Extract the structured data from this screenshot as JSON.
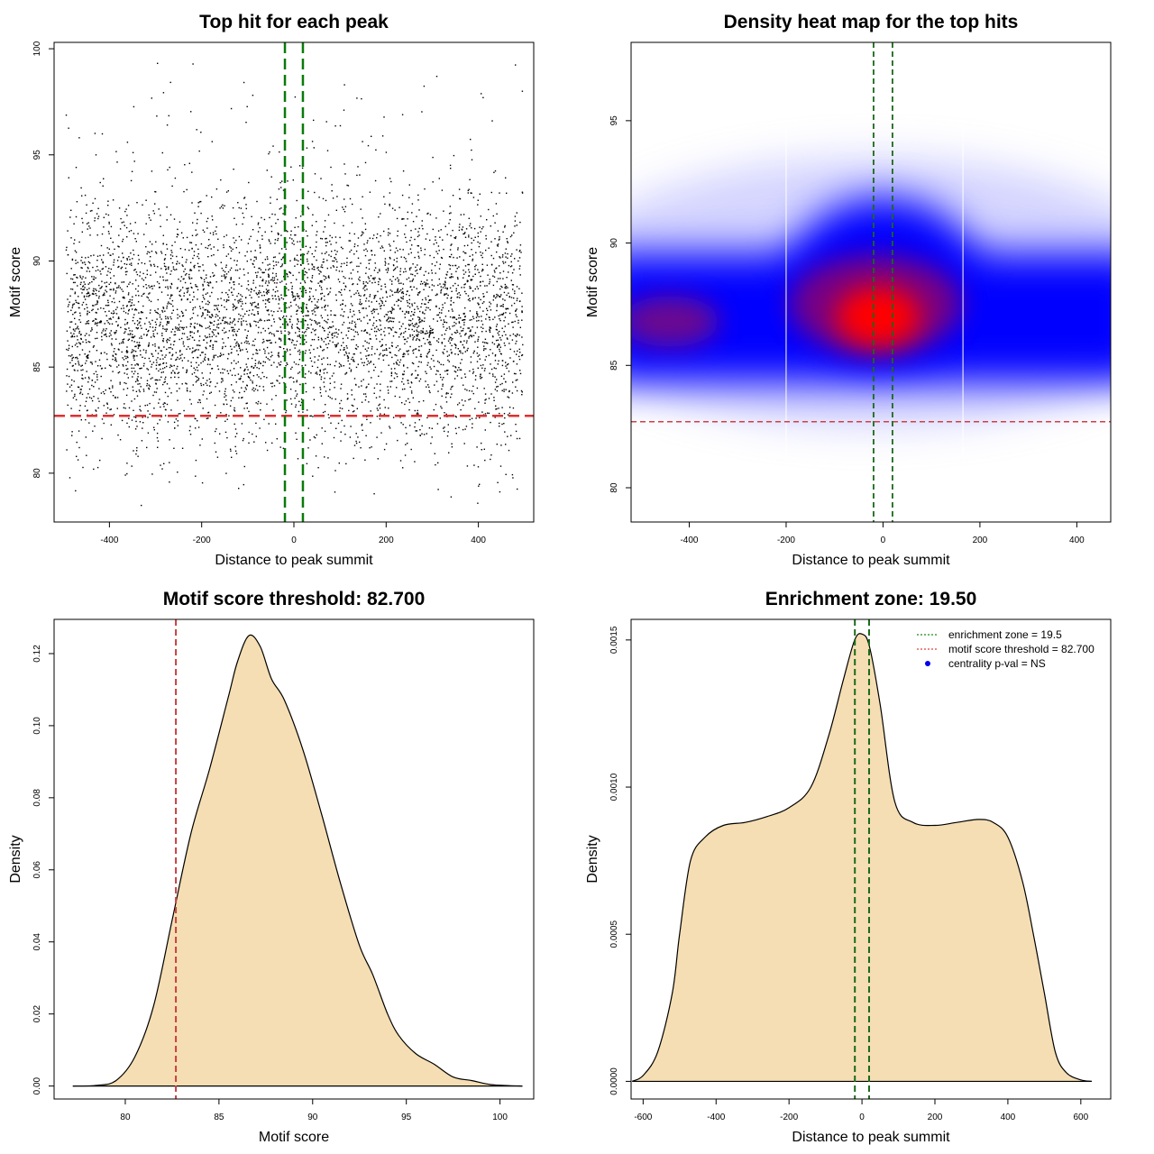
{
  "chart_data": [
    {
      "type": "scatter",
      "title": "Top hit for each peak",
      "xlabel": "Distance to peak summit",
      "ylabel": "Motif score",
      "xlim": [
        -520,
        520
      ],
      "ylim": [
        77.7,
        100.3
      ],
      "xticks": [
        -400,
        -200,
        0,
        200,
        400
      ],
      "yticks": [
        80,
        85,
        90,
        95,
        100
      ],
      "point_count": 5000,
      "point_color": "#000000",
      "threshold": 82.7,
      "zone": 19.5,
      "threshold_color": "#e03030",
      "zone_color": "#0a7a0a"
    },
    {
      "type": "heatmap",
      "title": "Density heat map for the top hits",
      "xlabel": "Distance to peak summit",
      "ylabel": "Motif score",
      "xlim": [
        -520,
        470
      ],
      "ylim": [
        78.6,
        98.2
      ],
      "xticks": [
        -400,
        -200,
        0,
        200,
        400
      ],
      "yticks": [
        80,
        85,
        90,
        95
      ],
      "threshold": 82.7,
      "zone": 19.5,
      "low_color": "#ffffff",
      "mid_color": "#0000ff",
      "high_color": "#ff0000",
      "threshold_color": "#d04040",
      "zone_color": "#1a6a1a"
    },
    {
      "type": "area",
      "title": "Motif score threshold: 82.700",
      "xlabel": "Motif score",
      "ylabel": "Density",
      "xlim": [
        76.2,
        101.8
      ],
      "ylim": [
        -0.0036,
        0.1295
      ],
      "xticks": [
        80,
        85,
        90,
        95,
        100
      ],
      "yticks": [
        0.0,
        0.02,
        0.04,
        0.06,
        0.08,
        0.1,
        0.12
      ],
      "ytick_labels": [
        "0.00",
        "0.02",
        "0.04",
        "0.06",
        "0.08",
        "0.10",
        "0.12"
      ],
      "x": [
        77.2,
        78.5,
        79.5,
        80.5,
        81.5,
        82.5,
        83.5,
        84.5,
        85.5,
        86.0,
        86.6,
        87.2,
        87.8,
        88.5,
        89.5,
        90.5,
        91.5,
        92.5,
        93.2,
        94.0,
        94.6,
        95.5,
        96.5,
        97.5,
        98.5,
        99.5,
        100.5,
        101.2
      ],
      "y": [
        0.0,
        0.0002,
        0.0015,
        0.008,
        0.022,
        0.046,
        0.07,
        0.088,
        0.108,
        0.118,
        0.125,
        0.122,
        0.113,
        0.107,
        0.093,
        0.075,
        0.056,
        0.039,
        0.031,
        0.02,
        0.014,
        0.009,
        0.006,
        0.0025,
        0.0015,
        0.0004,
        0.0001,
        0.0
      ],
      "threshold": 82.7,
      "fill_color": "#f5deb3",
      "threshold_color": "#c84040"
    },
    {
      "type": "area",
      "title": "Enrichment zone: 19.50",
      "xlabel": "Distance to peak summit",
      "ylabel": "Density",
      "xlim": [
        -633,
        682
      ],
      "ylim": [
        -6e-05,
        0.00157
      ],
      "xticks": [
        -600,
        -400,
        -200,
        0,
        200,
        400,
        600
      ],
      "yticks": [
        0.0,
        0.0005,
        0.001,
        0.0015
      ],
      "ytick_labels": [
        "0.0000",
        "0.0005",
        "0.0010",
        "0.0015"
      ],
      "x": [
        -630,
        -600,
        -560,
        -520,
        -500,
        -470,
        -430,
        -380,
        -320,
        -260,
        -200,
        -140,
        -90,
        -50,
        -20,
        0,
        20,
        50,
        90,
        140,
        200,
        260,
        320,
        360,
        400,
        440,
        470,
        500,
        530,
        560,
        600,
        630
      ],
      "y": [
        0.0,
        2e-05,
        0.0001,
        0.0003,
        0.0005,
        0.00075,
        0.00083,
        0.00087,
        0.00088,
        0.0009,
        0.00093,
        0.001,
        0.00118,
        0.00137,
        0.0015,
        0.00152,
        0.00148,
        0.00128,
        0.00095,
        0.00088,
        0.00087,
        0.00088,
        0.00089,
        0.00088,
        0.00083,
        0.00068,
        0.0005,
        0.0003,
        0.0001,
        3e-05,
        5e-06,
        0.0
      ],
      "zone": 19.5,
      "fill_color": "#f5deb3",
      "zone_color": "#1a6a1a",
      "legend": [
        {
          "label": "enrichment zone = 19.5",
          "style": "dotted",
          "color": "#1a8a1a"
        },
        {
          "label": "motif score threshold = 82.700",
          "style": "dotted",
          "color": "#e04040"
        },
        {
          "label": "centrality p-val = NS",
          "style": "point",
          "color": "#0000ee"
        }
      ]
    }
  ]
}
